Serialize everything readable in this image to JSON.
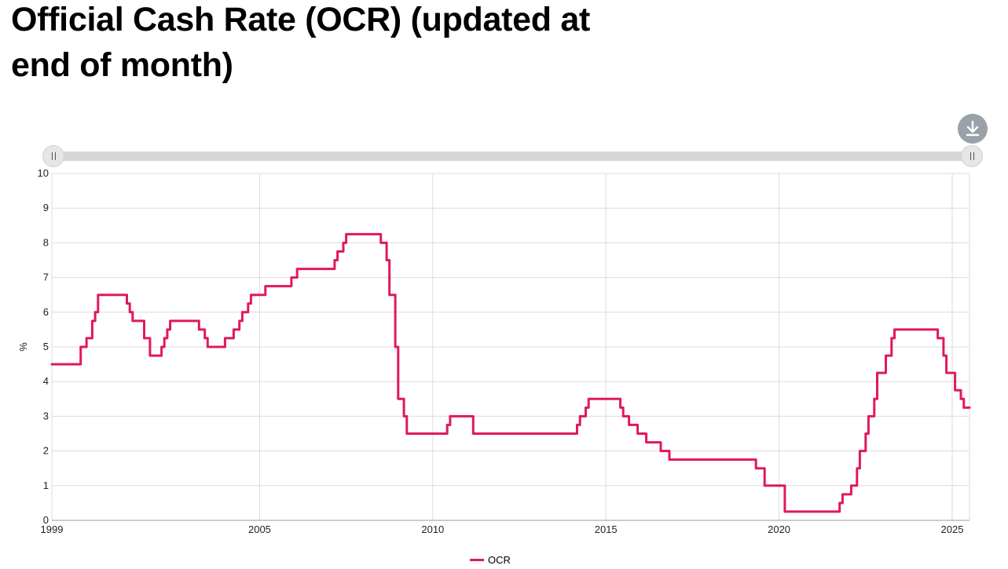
{
  "title": "Official Cash Rate (OCR) (updated at end of month)",
  "download_icon": "download-arrow-icon",
  "colors": {
    "series": "#e0185e",
    "grid": "#dcdcdc",
    "slider_track": "#d6d6d6",
    "download_button": "#9aa1a8"
  },
  "chart_data": {
    "type": "line",
    "ylabel": "%",
    "xlabel": "",
    "ylim": [
      0,
      10
    ],
    "xlim": [
      "1999-01-01",
      "2025-07-01"
    ],
    "yticks": [
      "0",
      "1",
      "2",
      "3",
      "4",
      "5",
      "6",
      "7",
      "8",
      "9",
      "10"
    ],
    "xticks": [
      "1999",
      "2005",
      "2010",
      "2015",
      "2020",
      "2025"
    ],
    "grid": true,
    "legend_position": "bottom-center",
    "series": [
      {
        "name": "OCR",
        "color": "#e0185e",
        "step": true,
        "points": [
          [
            "1999-01-01",
            4.5
          ],
          [
            "1999-11-01",
            5.0
          ],
          [
            "2000-01-01",
            5.25
          ],
          [
            "2000-03-01",
            5.75
          ],
          [
            "2000-04-01",
            6.0
          ],
          [
            "2000-05-01",
            6.5
          ],
          [
            "2001-03-01",
            6.25
          ],
          [
            "2001-04-01",
            6.0
          ],
          [
            "2001-05-01",
            5.75
          ],
          [
            "2001-09-01",
            5.25
          ],
          [
            "2001-11-01",
            4.75
          ],
          [
            "2002-03-01",
            5.0
          ],
          [
            "2002-04-01",
            5.25
          ],
          [
            "2002-05-01",
            5.5
          ],
          [
            "2002-06-01",
            5.75
          ],
          [
            "2003-04-01",
            5.5
          ],
          [
            "2003-06-01",
            5.25
          ],
          [
            "2003-07-01",
            5.0
          ],
          [
            "2004-01-01",
            5.25
          ],
          [
            "2004-04-01",
            5.5
          ],
          [
            "2004-06-01",
            5.75
          ],
          [
            "2004-07-01",
            6.0
          ],
          [
            "2004-09-01",
            6.25
          ],
          [
            "2004-10-01",
            6.5
          ],
          [
            "2005-03-01",
            6.75
          ],
          [
            "2005-12-01",
            7.0
          ],
          [
            "2006-02-01",
            7.25
          ],
          [
            "2007-03-01",
            7.5
          ],
          [
            "2007-04-01",
            7.75
          ],
          [
            "2007-06-01",
            8.0
          ],
          [
            "2007-07-01",
            8.25
          ],
          [
            "2008-07-01",
            8.0
          ],
          [
            "2008-09-01",
            7.5
          ],
          [
            "2008-10-01",
            6.5
          ],
          [
            "2008-12-01",
            5.0
          ],
          [
            "2009-01-01",
            3.5
          ],
          [
            "2009-03-01",
            3.0
          ],
          [
            "2009-04-01",
            2.5
          ],
          [
            "2010-06-01",
            2.75
          ],
          [
            "2010-07-01",
            3.0
          ],
          [
            "2011-03-01",
            2.5
          ],
          [
            "2014-03-01",
            2.75
          ],
          [
            "2014-04-01",
            3.0
          ],
          [
            "2014-06-01",
            3.25
          ],
          [
            "2014-07-01",
            3.5
          ],
          [
            "2015-06-01",
            3.25
          ],
          [
            "2015-07-01",
            3.0
          ],
          [
            "2015-09-01",
            2.75
          ],
          [
            "2015-12-01",
            2.5
          ],
          [
            "2016-03-01",
            2.25
          ],
          [
            "2016-08-01",
            2.0
          ],
          [
            "2016-11-01",
            1.75
          ],
          [
            "2019-05-01",
            1.5
          ],
          [
            "2019-08-01",
            1.0
          ],
          [
            "2020-03-01",
            0.25
          ],
          [
            "2021-10-01",
            0.5
          ],
          [
            "2021-11-01",
            0.75
          ],
          [
            "2022-02-01",
            1.0
          ],
          [
            "2022-04-01",
            1.5
          ],
          [
            "2022-05-01",
            2.0
          ],
          [
            "2022-07-01",
            2.5
          ],
          [
            "2022-08-01",
            3.0
          ],
          [
            "2022-10-01",
            3.5
          ],
          [
            "2022-11-01",
            4.25
          ],
          [
            "2023-02-01",
            4.75
          ],
          [
            "2023-04-01",
            5.25
          ],
          [
            "2023-05-01",
            5.5
          ],
          [
            "2024-08-01",
            5.25
          ],
          [
            "2024-10-01",
            4.75
          ],
          [
            "2024-11-01",
            4.25
          ],
          [
            "2025-02-01",
            3.75
          ],
          [
            "2025-04-01",
            3.5
          ],
          [
            "2025-05-01",
            3.25
          ],
          [
            "2025-07-01",
            3.25
          ]
        ]
      }
    ]
  },
  "legend": {
    "label": "OCR"
  }
}
